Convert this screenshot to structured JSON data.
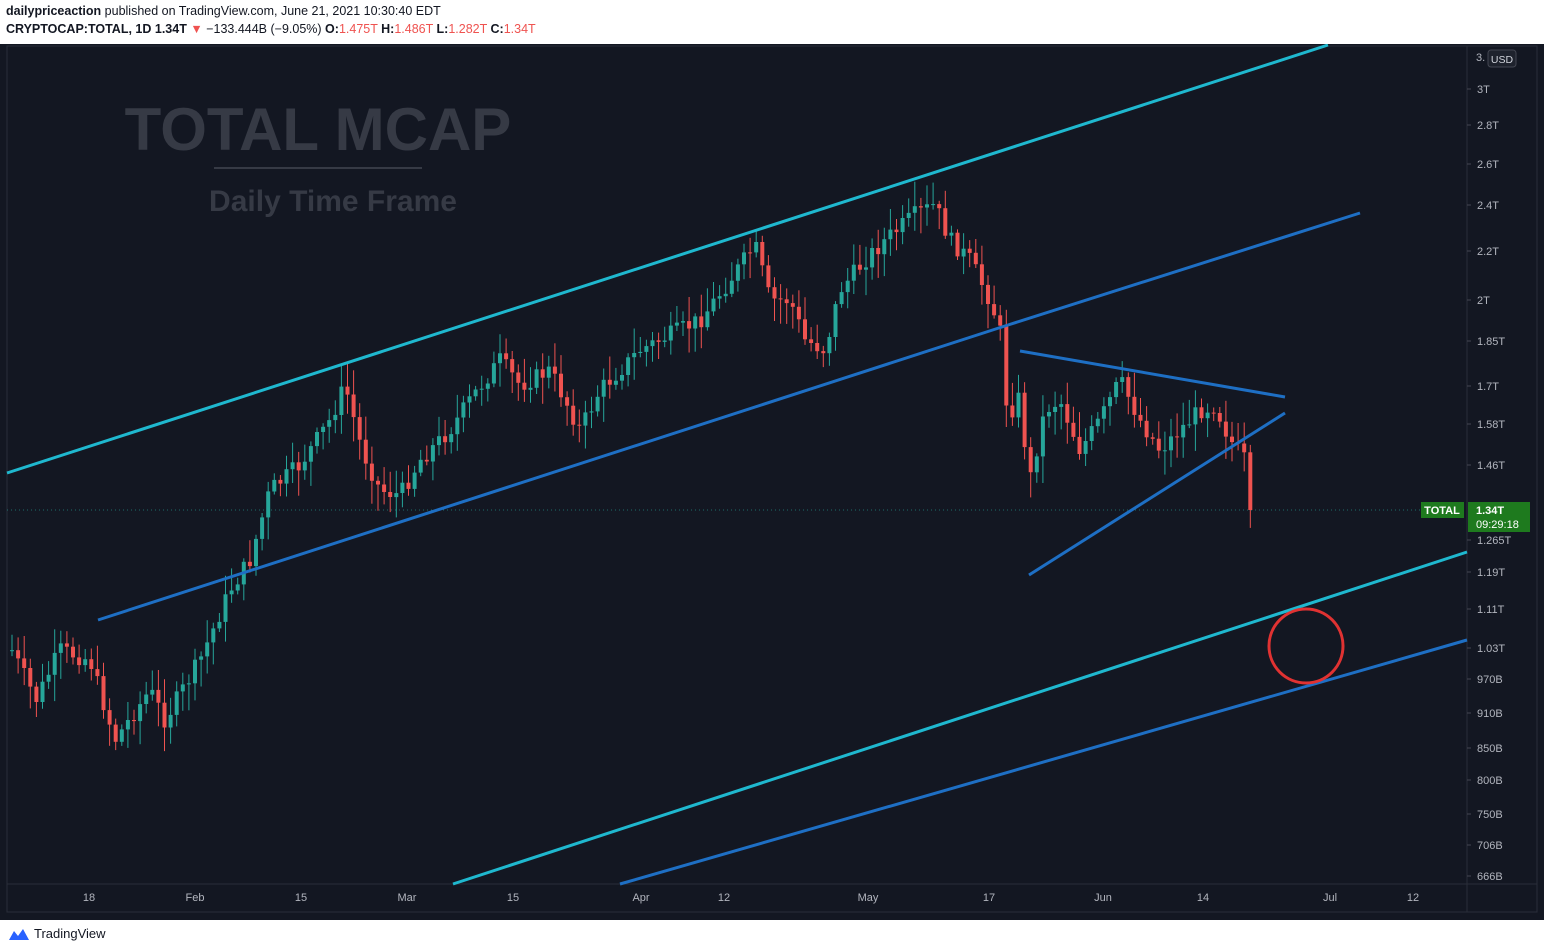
{
  "header": {
    "author": "dailypriceaction",
    "published_text": "published on TradingView.com, June 21, 2021 10:30:40 EDT",
    "symbol": "CRYPTOCAP:TOTAL, 1D",
    "last": "1.34T",
    "arrow": "▼",
    "change": "−133.444B (−9.05%)",
    "o_label": "O:",
    "o": "1.475T",
    "h_label": "H:",
    "h": "1.486T",
    "l_label": "L:",
    "l": "1.282T",
    "c_label": "C:",
    "c": "1.34T"
  },
  "watermark": {
    "title": "TOTAL MCAP",
    "subtitle": "Daily Time Frame"
  },
  "price_scale": {
    "currency": "USD",
    "top_label": "3.",
    "ticks": [
      "3T",
      "2.8T",
      "2.6T",
      "2.4T",
      "2.2T",
      "2T",
      "1.85T",
      "1.7T",
      "1.58T",
      "1.46T",
      "1.265T",
      "1.19T",
      "1.11T",
      "1.03T",
      "970B",
      "910B",
      "850B",
      "800B",
      "750B",
      "706B",
      "666B"
    ],
    "last_label": "TOTAL",
    "last_value": "1.34T",
    "countdown": "09:29:18"
  },
  "time_scale": {
    "ticks": [
      "18",
      "Feb",
      "15",
      "Mar",
      "15",
      "Apr",
      "12",
      "May",
      "17",
      "Jun",
      "14",
      "Jul",
      "12"
    ]
  },
  "footer": {
    "brand": "TradingView"
  },
  "colors": {
    "background": "#131722",
    "up": "#26a69a",
    "down": "#ef5350",
    "channel_cyan": "#1fb8cf",
    "channel_blue": "#1e6fc4",
    "circle": "#e03232",
    "last_price_badge": "#1e7a1e"
  },
  "chart_data": {
    "type": "candlestick",
    "symbol": "CRYPTOCAP:TOTAL",
    "interval": "1D",
    "y_scale": "log",
    "x_range": [
      "2021-01-11",
      "2021-07-15"
    ],
    "ylim": [
      660000000000,
      3050000000000
    ],
    "last_candle": {
      "date": "2021-06-21",
      "open": 1475000000000.0,
      "high": 1486000000000.0,
      "low": 1282000000000.0,
      "close": 1340000000000.0
    },
    "annotations": [
      {
        "type": "trendline",
        "color": "cyan",
        "from": [
          "2021-01-10",
          1420000000000.0
        ],
        "to": [
          "2021-06-29",
          3010000000000.0
        ]
      },
      {
        "type": "trendline",
        "color": "blue",
        "from": [
          "2021-01-20",
          1080000000000.0
        ],
        "to": [
          "2021-05-18",
          1890000000000.0
        ]
      },
      {
        "type": "trendline",
        "color": "blue",
        "from": [
          "2021-05-18",
          1890000000000.0
        ],
        "to": [
          "2021-07-03",
          2350000000000.0
        ]
      },
      {
        "type": "trendline",
        "color": "blue",
        "from": [
          "2021-05-19",
          1820000000000.0
        ],
        "to": [
          "2021-06-25",
          1660000000000.0
        ]
      },
      {
        "type": "trendline",
        "color": "blue",
        "from": [
          "2021-05-20",
          1180000000000.0
        ],
        "to": [
          "2021-06-25",
          1610000000000.0
        ]
      },
      {
        "type": "trendline",
        "color": "cyan",
        "from": [
          "2021-03-06",
          655000000000.0
        ],
        "to": [
          "2021-07-13",
          1270000000000.0
        ]
      },
      {
        "type": "trendline",
        "color": "blue",
        "from": [
          "2021-03-24",
          655000000000.0
        ],
        "to": [
          "2021-07-13",
          1050000000000.0
        ]
      },
      {
        "type": "circle",
        "color": "red",
        "center": [
          "2021-06-26",
          1040000000000.0
        ]
      }
    ]
  }
}
